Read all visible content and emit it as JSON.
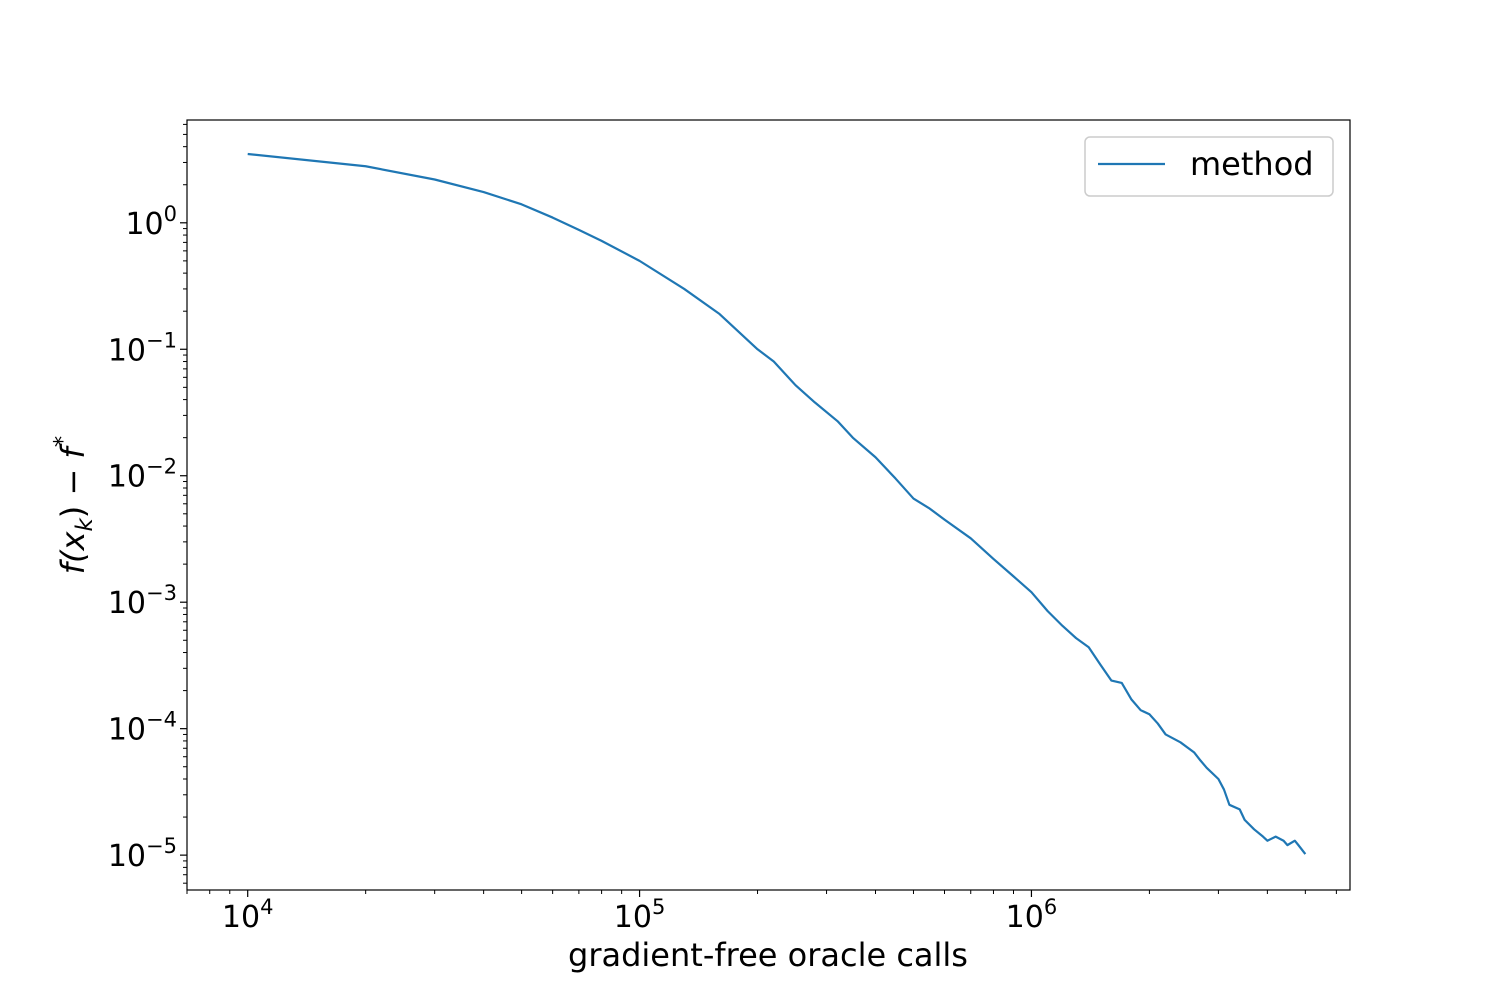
{
  "chart_data": {
    "type": "line",
    "title": "",
    "xlabel": "gradient-free oracle calls",
    "ylabel": "f(x_k) − f^*",
    "xscale": "log",
    "yscale": "log",
    "xlim": [
      7000,
      6500000
    ],
    "ylim": [
      5.3e-06,
      6.5
    ],
    "grid": false,
    "legend_position": "top-right",
    "x_ticks": [
      {
        "base": "10",
        "exp": "4",
        "value": 10000
      },
      {
        "base": "10",
        "exp": "5",
        "value": 100000
      },
      {
        "base": "10",
        "exp": "6",
        "value": 1000000
      }
    ],
    "y_ticks": [
      {
        "base": "10",
        "exp": "0",
        "value": 1
      },
      {
        "base": "10",
        "exp": "−1",
        "value": 0.1
      },
      {
        "base": "10",
        "exp": "−2",
        "value": 0.01
      },
      {
        "base": "10",
        "exp": "−3",
        "value": 0.001
      },
      {
        "base": "10",
        "exp": "−4",
        "value": 0.0001
      },
      {
        "base": "10",
        "exp": "−5",
        "value": 1e-05
      }
    ],
    "series": [
      {
        "name": "method",
        "color": "#1f77b4",
        "x": [
          10000,
          20000,
          30000,
          40000,
          50000,
          60000,
          70000,
          80000,
          100000,
          130000,
          160000,
          200000,
          220000,
          250000,
          280000,
          320000,
          350000,
          400000,
          450000,
          500000,
          550000,
          600000,
          700000,
          800000,
          900000,
          1000000,
          1100000,
          1200000,
          1300000,
          1400000,
          1500000,
          1600000,
          1700000,
          1800000,
          1900000,
          2000000,
          2100000,
          2200000,
          2400000,
          2600000,
          2700000,
          2800000,
          3000000,
          3100000,
          3200000,
          3400000,
          3500000,
          3700000,
          3900000,
          4000000,
          4200000,
          4400000,
          4500000,
          4700000,
          4800000,
          5000000
        ],
        "values": [
          3.5,
          2.8,
          2.2,
          1.75,
          1.4,
          1.1,
          0.88,
          0.72,
          0.5,
          0.3,
          0.19,
          0.1,
          0.08,
          0.052,
          0.038,
          0.027,
          0.02,
          0.014,
          0.0095,
          0.0066,
          0.0055,
          0.0045,
          0.0032,
          0.0022,
          0.0016,
          0.0012,
          0.00085,
          0.00065,
          0.00052,
          0.00044,
          0.00032,
          0.00024,
          0.00023,
          0.00017,
          0.00014,
          0.00013,
          0.00011,
          9e-05,
          7.8e-05,
          6.5e-05,
          5.6e-05,
          4.9e-05,
          4e-05,
          3.3e-05,
          2.5e-05,
          2.3e-05,
          1.9e-05,
          1.6e-05,
          1.4e-05,
          1.3e-05,
          1.4e-05,
          1.3e-05,
          1.2e-05,
          1.3e-05,
          1.2e-05,
          1.02e-05
        ]
      }
    ]
  }
}
